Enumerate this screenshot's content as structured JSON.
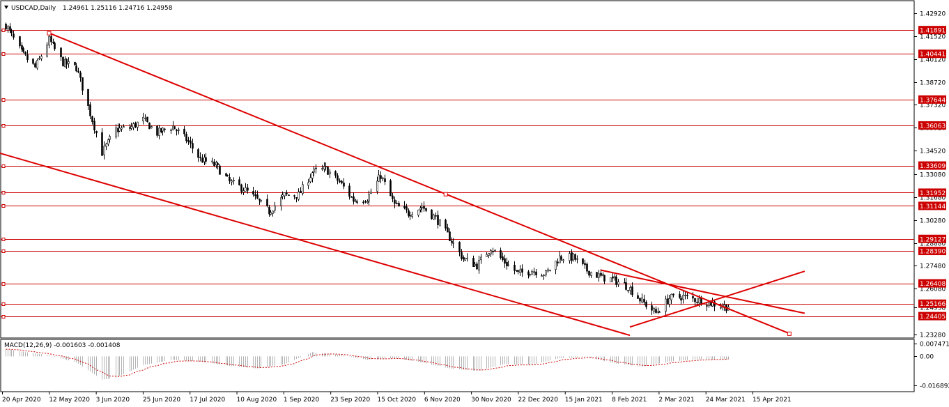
{
  "header": {
    "symbol": "USDCAD,Daily",
    "ohlc": "1.24961 1.25116 1.24716 1.24958"
  },
  "macd_header": "MACD(12,26,9) -0.001603 -0.001408",
  "colors": {
    "background": "#ffffff",
    "candle": "#000000",
    "level_line": "#cc0000",
    "level_tag": "#cc0000",
    "trend_line": "#dd0000",
    "macd_histogram": "#b4b4b4",
    "macd_signal": "#cc0000"
  },
  "icons": {
    "dropdown": "triangle-down-icon"
  },
  "chart_data": [
    {
      "type": "candlestick",
      "title": "USDCAD,Daily",
      "ylim": [
        1.2328,
        1.4292
      ],
      "y_ticks": [
        "1.42920",
        "1.41520",
        "1.40120",
        "1.38720",
        "1.37320",
        "1.35920",
        "1.34520",
        "1.33080",
        "1.31680",
        "1.30280",
        "1.28880",
        "1.27480",
        "1.26080",
        "1.24958",
        "1.23280"
      ],
      "x_ticks": [
        "20 Apr 2020",
        "12 May 2020",
        "3 Jun 2020",
        "25 Jun 2020",
        "17 Jul 2020",
        "10 Aug 2020",
        "1 Sep 2020",
        "23 Sep 2020",
        "15 Oct 2020",
        "6 Nov 2020",
        "30 Nov 2020",
        "22 Dec 2020",
        "15 Jan 2021",
        "8 Feb 2021",
        "2 Mar 2021",
        "24 Mar 2021",
        "15 Apr 2021"
      ],
      "horizontal_levels": [
        1.41891,
        1.40441,
        1.37644,
        1.36063,
        1.33609,
        1.31952,
        1.31144,
        1.29127,
        1.2839,
        1.26408,
        1.25166,
        1.24405
      ],
      "current_price": 1.24958,
      "trend_lines": [
        {
          "name": "upper-channel",
          "from": [
            "2020-05-12",
            1.4172
          ],
          "to": [
            "2021-05-24",
            1.2335
          ]
        },
        {
          "name": "lower-channel",
          "from": [
            "2020-04-06",
            1.3475
          ],
          "to": [
            "2021-03-04",
            1.2323
          ]
        },
        {
          "name": "wedge-top",
          "from": [
            "2021-02-17",
            1.2722
          ],
          "to": [
            "2021-06-01",
            1.2458
          ]
        },
        {
          "name": "wedge-bottom",
          "from": [
            "2021-03-04",
            1.2374
          ],
          "to": [
            "2021-06-01",
            1.2715
          ]
        }
      ],
      "key_closes": [
        [
          "2020-04-20",
          1.422
        ],
        [
          "2020-04-28",
          1.405
        ],
        [
          "2020-05-05",
          1.396
        ],
        [
          "2020-05-12",
          1.413
        ],
        [
          "2020-05-19",
          1.399
        ],
        [
          "2020-05-26",
          1.396
        ],
        [
          "2020-06-02",
          1.368
        ],
        [
          "2020-06-08",
          1.344
        ],
        [
          "2020-06-15",
          1.358
        ],
        [
          "2020-06-22",
          1.359
        ],
        [
          "2020-06-29",
          1.364
        ],
        [
          "2020-07-06",
          1.356
        ],
        [
          "2020-07-14",
          1.36
        ],
        [
          "2020-07-21",
          1.352
        ],
        [
          "2020-07-28",
          1.34
        ],
        [
          "2020-08-05",
          1.336
        ],
        [
          "2020-08-12",
          1.326
        ],
        [
          "2020-08-19",
          1.322
        ],
        [
          "2020-08-26",
          1.315
        ],
        [
          "2020-09-01",
          1.308
        ],
        [
          "2020-09-09",
          1.318
        ],
        [
          "2020-09-16",
          1.318
        ],
        [
          "2020-09-23",
          1.332
        ],
        [
          "2020-09-30",
          1.334
        ],
        [
          "2020-10-07",
          1.326
        ],
        [
          "2020-10-14",
          1.315
        ],
        [
          "2020-10-21",
          1.316
        ],
        [
          "2020-10-28",
          1.33
        ],
        [
          "2020-11-04",
          1.312
        ],
        [
          "2020-11-11",
          1.307
        ],
        [
          "2020-11-18",
          1.311
        ],
        [
          "2020-11-25",
          1.304
        ],
        [
          "2020-12-02",
          1.292
        ],
        [
          "2020-12-09",
          1.279
        ],
        [
          "2020-12-16",
          1.275
        ],
        [
          "2020-12-23",
          1.286
        ],
        [
          "2020-12-30",
          1.277
        ],
        [
          "2021-01-06",
          1.27
        ],
        [
          "2021-01-13",
          1.272
        ],
        [
          "2021-01-20",
          1.27
        ],
        [
          "2021-01-27",
          1.28
        ],
        [
          "2021-02-03",
          1.28
        ],
        [
          "2021-02-10",
          1.272
        ],
        [
          "2021-02-17",
          1.268
        ],
        [
          "2021-02-24",
          1.266
        ],
        [
          "2021-03-03",
          1.262
        ],
        [
          "2021-03-10",
          1.253
        ],
        [
          "2021-03-17",
          1.246
        ],
        [
          "2021-03-24",
          1.255
        ],
        [
          "2021-03-31",
          1.256
        ],
        [
          "2021-04-07",
          1.254
        ],
        [
          "2021-04-14",
          1.252
        ],
        [
          "2021-04-21",
          1.25
        ],
        [
          "2021-04-23",
          1.2496
        ]
      ]
    },
    {
      "type": "macd",
      "title": "MACD(12,26,9) -0.001603 -0.001408",
      "ylim": [
        -0.016892,
        0.007471
      ],
      "y_ticks": [
        "0.007471",
        "0.00",
        "-0.016892"
      ],
      "key_values": [
        [
          "2020-04-20",
          0.0042
        ],
        [
          "2020-05-12",
          0.0006
        ],
        [
          "2020-05-26",
          -0.0035
        ],
        [
          "2020-06-08",
          -0.0135
        ],
        [
          "2020-06-15",
          -0.0125
        ],
        [
          "2020-06-29",
          -0.005
        ],
        [
          "2020-07-14",
          -0.002
        ],
        [
          "2020-07-28",
          -0.003
        ],
        [
          "2020-08-12",
          -0.0055
        ],
        [
          "2020-08-26",
          -0.007
        ],
        [
          "2020-09-09",
          -0.0045
        ],
        [
          "2020-09-23",
          0.0025
        ],
        [
          "2020-10-07",
          0.001
        ],
        [
          "2020-10-21",
          -0.002
        ],
        [
          "2020-11-04",
          -0.001
        ],
        [
          "2020-11-18",
          -0.0035
        ],
        [
          "2020-12-02",
          -0.007
        ],
        [
          "2020-12-16",
          -0.0085
        ],
        [
          "2020-12-30",
          -0.0045
        ],
        [
          "2021-01-13",
          -0.005
        ],
        [
          "2021-01-27",
          -0.001
        ],
        [
          "2021-02-10",
          -0.0005
        ],
        [
          "2021-02-24",
          -0.004
        ],
        [
          "2021-03-10",
          -0.006
        ],
        [
          "2021-03-24",
          -0.003
        ],
        [
          "2021-04-07",
          -0.0018
        ],
        [
          "2021-04-23",
          -0.0016
        ]
      ],
      "current_macd": -0.001603,
      "current_signal": -0.001408
    }
  ]
}
